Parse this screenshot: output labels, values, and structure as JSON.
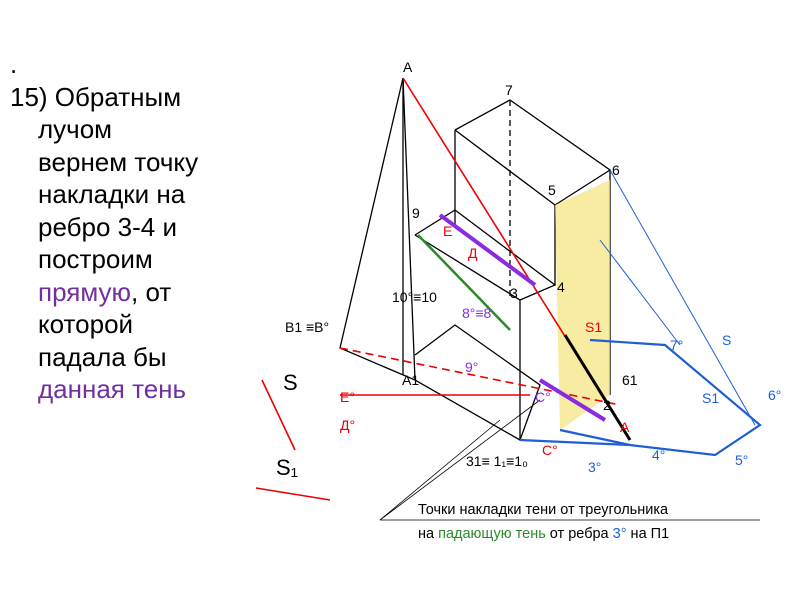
{
  "slide": {
    "text": {
      "bullet": ".",
      "lines": [
        [
          "15) Обратным"
        ],
        [
          "лучом"
        ],
        [
          "вернем точку"
        ],
        [
          "накладки на"
        ],
        [
          "ребро 3-4 и"
        ],
        [
          "построим"
        ],
        [
          "прямую",
          ", от"
        ],
        [
          "которой"
        ],
        [
          "падала бы"
        ],
        [
          "данная тень"
        ]
      ]
    },
    "caption": {
      "line1": "Точки накладки тени от треугольника",
      "line2": [
        "на ",
        "падающую тень",
        " от ребра ",
        "3°",
        " на П1"
      ]
    },
    "labels": [
      "A",
      "7",
      "6",
      "5",
      "9",
      "E",
      "Д",
      "10°≡10",
      "3",
      "4",
      "8°≡8",
      "S1",
      "B1 ≡B°",
      "7°",
      "S",
      "9°",
      "A1",
      "61",
      "E°",
      "Д°",
      "C°",
      "2",
      "S1",
      "6°",
      "31≡ 1₁≡1₀",
      "C°",
      "3°",
      "4°",
      "5°",
      "S",
      "S₁",
      "A"
    ]
  }
}
